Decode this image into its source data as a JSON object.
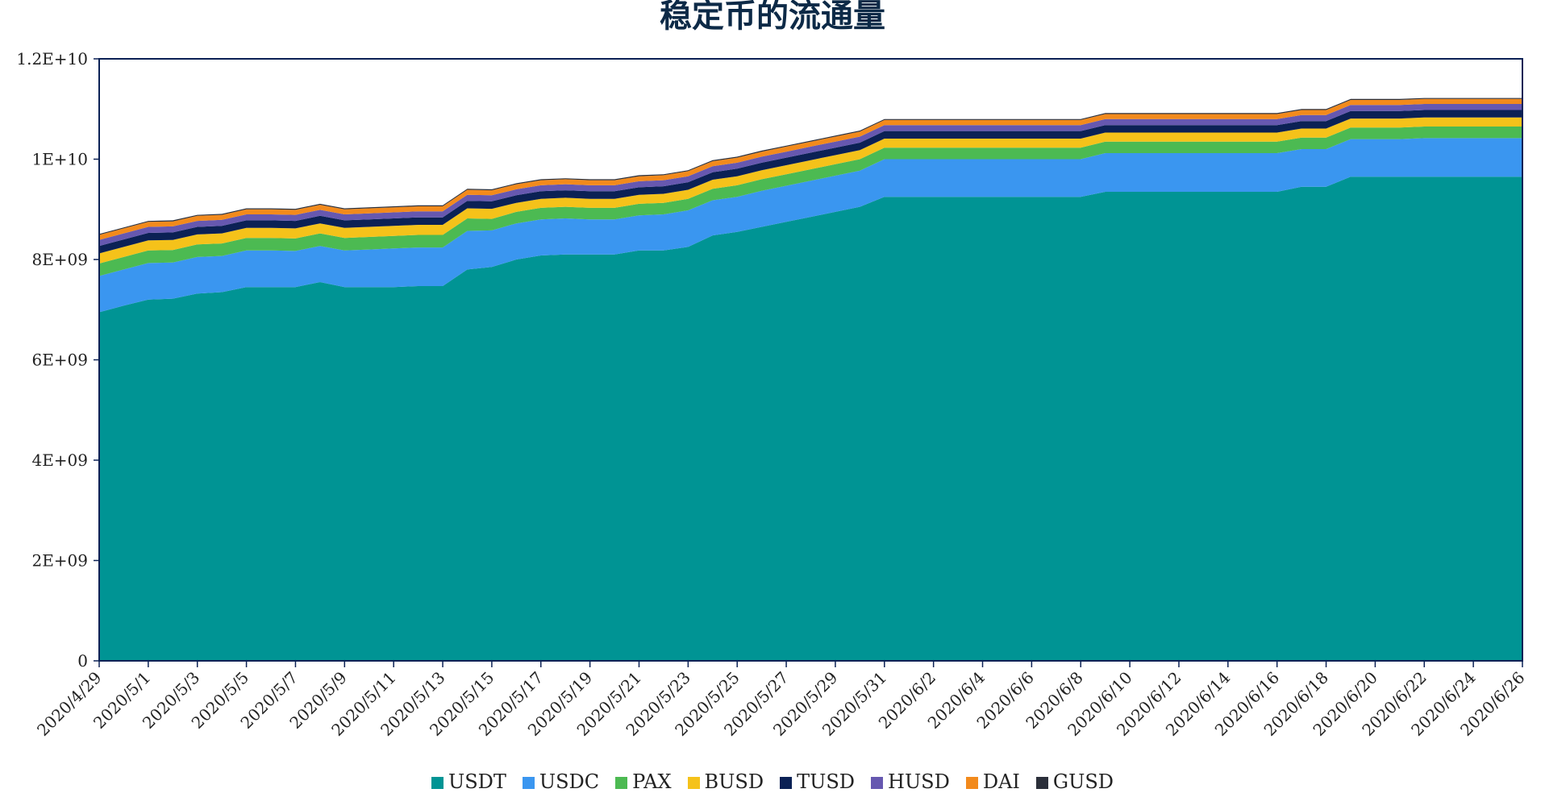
{
  "chart_data": {
    "type": "area",
    "stacked": true,
    "title": "稳定币的流通量",
    "xlabel": "",
    "ylabel": "",
    "ylim": [
      0,
      12000000000
    ],
    "y_ticks": [
      {
        "value": 0,
        "label": "0"
      },
      {
        "value": 2000000000,
        "label": "2E+09"
      },
      {
        "value": 4000000000,
        "label": "4E+09"
      },
      {
        "value": 6000000000,
        "label": "6E+09"
      },
      {
        "value": 8000000000,
        "label": "8E+09"
      },
      {
        "value": 10000000000,
        "label": "1E+10"
      },
      {
        "value": 12000000000,
        "label": "1.2E+10"
      }
    ],
    "x_tick_labels": [
      "2020/4/29",
      "2020/5/1",
      "2020/5/3",
      "2020/5/5",
      "2020/5/7",
      "2020/5/9",
      "2020/5/11",
      "2020/5/13",
      "2020/5/15",
      "2020/5/17",
      "2020/5/19",
      "2020/5/21",
      "2020/5/23",
      "2020/5/25",
      "2020/5/27",
      "2020/5/29",
      "2020/5/31",
      "2020/6/2",
      "2020/6/4",
      "2020/6/6",
      "2020/6/8",
      "2020/6/10",
      "2020/6/12",
      "2020/6/14",
      "2020/6/16",
      "2020/6/18",
      "2020/6/20",
      "2020/6/22",
      "2020/6/24",
      "2020/6/26"
    ],
    "x": [
      "2020/4/29",
      "2020/4/30",
      "2020/5/1",
      "2020/5/2",
      "2020/5/3",
      "2020/5/4",
      "2020/5/5",
      "2020/5/6",
      "2020/5/7",
      "2020/5/8",
      "2020/5/9",
      "2020/5/10",
      "2020/5/11",
      "2020/5/12",
      "2020/5/13",
      "2020/5/14",
      "2020/5/15",
      "2020/5/16",
      "2020/5/17",
      "2020/5/18",
      "2020/5/19",
      "2020/5/20",
      "2020/5/21",
      "2020/5/22",
      "2020/5/23",
      "2020/5/24",
      "2020/5/25",
      "2020/5/26",
      "2020/5/27",
      "2020/5/28",
      "2020/5/29",
      "2020/5/30",
      "2020/5/31",
      "2020/6/1",
      "2020/6/2",
      "2020/6/3",
      "2020/6/4",
      "2020/6/5",
      "2020/6/6",
      "2020/6/7",
      "2020/6/8",
      "2020/6/9",
      "2020/6/10",
      "2020/6/11",
      "2020/6/12",
      "2020/6/13",
      "2020/6/14",
      "2020/6/15",
      "2020/6/16",
      "2020/6/17",
      "2020/6/18",
      "2020/6/19",
      "2020/6/20",
      "2020/6/21",
      "2020/6/22",
      "2020/6/23",
      "2020/6/24",
      "2020/6/25",
      "2020/6/26"
    ],
    "series": [
      {
        "name": "USDT",
        "color": "#009494",
        "values": [
          6950000000.0,
          7080000000.0,
          7200000000.0,
          7220000000.0,
          7320000000.0,
          7350000000.0,
          7450000000.0,
          7450000000.0,
          7450000000.0,
          7550000000.0,
          7450000000.0,
          7450000000.0,
          7450000000.0,
          7470000000.0,
          7470000000.0,
          7800000000.0,
          7850000000.0,
          8000000000.0,
          8080000000.0,
          8100000000.0,
          8100000000.0,
          8100000000.0,
          8180000000.0,
          8180000000.0,
          8250000000.0,
          8480000000.0,
          8550000000.0,
          8650000000.0,
          8750000000.0,
          8850000000.0,
          8950000000.0,
          9050000000.0,
          9250000000.0,
          9250000000.0,
          9250000000.0,
          9250000000.0,
          9250000000.0,
          9250000000.0,
          9250000000.0,
          9250000000.0,
          9250000000.0,
          9350000000.0,
          9350000000.0,
          9350000000.0,
          9350000000.0,
          9350000000.0,
          9350000000.0,
          9350000000.0,
          9350000000.0,
          9450000000.0,
          9450000000.0,
          9650000000.0,
          9650000000.0,
          9650000000.0,
          9650000000.0,
          9650000000.0,
          9650000000.0,
          9650000000.0,
          9650000000.0
        ]
      },
      {
        "name": "USDC",
        "color": "#3a96f0",
        "values": [
          720000000.0,
          720000000.0,
          730000000.0,
          720000000.0,
          730000000.0,
          720000000.0,
          730000000.0,
          730000000.0,
          720000000.0,
          720000000.0,
          730000000.0,
          750000000.0,
          770000000.0,
          770000000.0,
          770000000.0,
          770000000.0,
          730000000.0,
          720000000.0,
          720000000.0,
          720000000.0,
          700000000.0,
          700000000.0,
          700000000.0,
          720000000.0,
          730000000.0,
          700000000.0,
          700000000.0,
          720000000.0,
          720000000.0,
          720000000.0,
          720000000.0,
          720000000.0,
          750000000.0,
          750000000.0,
          750000000.0,
          750000000.0,
          750000000.0,
          750000000.0,
          750000000.0,
          750000000.0,
          750000000.0,
          770000000.0,
          770000000.0,
          770000000.0,
          770000000.0,
          770000000.0,
          770000000.0,
          770000000.0,
          770000000.0,
          750000000.0,
          750000000.0,
          750000000.0,
          750000000.0,
          750000000.0,
          770000000.0,
          770000000.0,
          770000000.0,
          770000000.0,
          770000000.0
        ]
      },
      {
        "name": "PAX",
        "color": "#4cba52",
        "values": [
          250000000.0,
          250000000.0,
          250000000.0,
          250000000.0,
          250000000.0,
          250000000.0,
          250000000.0,
          250000000.0,
          250000000.0,
          250000000.0,
          250000000.0,
          250000000.0,
          250000000.0,
          250000000.0,
          250000000.0,
          250000000.0,
          230000000.0,
          230000000.0,
          230000000.0,
          230000000.0,
          230000000.0,
          230000000.0,
          230000000.0,
          230000000.0,
          230000000.0,
          230000000.0,
          230000000.0,
          230000000.0,
          230000000.0,
          230000000.0,
          230000000.0,
          230000000.0,
          230000000.0,
          230000000.0,
          230000000.0,
          230000000.0,
          230000000.0,
          230000000.0,
          230000000.0,
          230000000.0,
          230000000.0,
          230000000.0,
          230000000.0,
          230000000.0,
          230000000.0,
          230000000.0,
          230000000.0,
          230000000.0,
          230000000.0,
          230000000.0,
          230000000.0,
          230000000.0,
          230000000.0,
          230000000.0,
          230000000.0,
          230000000.0,
          230000000.0,
          230000000.0,
          230000000.0
        ]
      },
      {
        "name": "BUSD",
        "color": "#f5c21a",
        "values": [
          200000000.0,
          200000000.0,
          200000000.0,
          200000000.0,
          200000000.0,
          200000000.0,
          200000000.0,
          200000000.0,
          200000000.0,
          200000000.0,
          200000000.0,
          200000000.0,
          200000000.0,
          200000000.0,
          200000000.0,
          200000000.0,
          200000000.0,
          180000000.0,
          180000000.0,
          180000000.0,
          180000000.0,
          180000000.0,
          180000000.0,
          180000000.0,
          180000000.0,
          180000000.0,
          180000000.0,
          180000000.0,
          180000000.0,
          180000000.0,
          180000000.0,
          180000000.0,
          180000000.0,
          180000000.0,
          180000000.0,
          180000000.0,
          180000000.0,
          180000000.0,
          180000000.0,
          180000000.0,
          180000000.0,
          180000000.0,
          180000000.0,
          180000000.0,
          180000000.0,
          180000000.0,
          180000000.0,
          180000000.0,
          180000000.0,
          180000000.0,
          180000000.0,
          180000000.0,
          180000000.0,
          180000000.0,
          180000000.0,
          180000000.0,
          180000000.0,
          180000000.0,
          180000000.0
        ]
      },
      {
        "name": "TUSD",
        "color": "#0b2155",
        "values": [
          150000000.0,
          150000000.0,
          150000000.0,
          150000000.0,
          150000000.0,
          150000000.0,
          150000000.0,
          150000000.0,
          150000000.0,
          150000000.0,
          150000000.0,
          150000000.0,
          150000000.0,
          150000000.0,
          150000000.0,
          150000000.0,
          150000000.0,
          150000000.0,
          150000000.0,
          150000000.0,
          150000000.0,
          150000000.0,
          150000000.0,
          150000000.0,
          150000000.0,
          150000000.0,
          150000000.0,
          150000000.0,
          150000000.0,
          150000000.0,
          150000000.0,
          150000000.0,
          150000000.0,
          150000000.0,
          150000000.0,
          150000000.0,
          150000000.0,
          150000000.0,
          150000000.0,
          150000000.0,
          150000000.0,
          150000000.0,
          150000000.0,
          150000000.0,
          150000000.0,
          150000000.0,
          150000000.0,
          150000000.0,
          150000000.0,
          150000000.0,
          150000000.0,
          150000000.0,
          150000000.0,
          150000000.0,
          150000000.0,
          150000000.0,
          150000000.0,
          150000000.0,
          150000000.0
        ]
      },
      {
        "name": "HUSD",
        "color": "#6658b0",
        "values": [
          120000000.0,
          120000000.0,
          120000000.0,
          120000000.0,
          120000000.0,
          120000000.0,
          120000000.0,
          120000000.0,
          120000000.0,
          120000000.0,
          120000000.0,
          120000000.0,
          120000000.0,
          120000000.0,
          120000000.0,
          120000000.0,
          120000000.0,
          120000000.0,
          120000000.0,
          120000000.0,
          120000000.0,
          120000000.0,
          120000000.0,
          120000000.0,
          120000000.0,
          120000000.0,
          120000000.0,
          120000000.0,
          120000000.0,
          120000000.0,
          120000000.0,
          120000000.0,
          120000000.0,
          120000000.0,
          120000000.0,
          120000000.0,
          120000000.0,
          120000000.0,
          120000000.0,
          120000000.0,
          120000000.0,
          120000000.0,
          120000000.0,
          120000000.0,
          120000000.0,
          120000000.0,
          120000000.0,
          120000000.0,
          120000000.0,
          120000000.0,
          120000000.0,
          120000000.0,
          120000000.0,
          120000000.0,
          120000000.0,
          120000000.0,
          120000000.0,
          120000000.0,
          120000000.0
        ]
      },
      {
        "name": "DAI",
        "color": "#f28a1c",
        "values": [
          100000000.0,
          100000000.0,
          100000000.0,
          100000000.0,
          100000000.0,
          100000000.0,
          100000000.0,
          100000000.0,
          100000000.0,
          100000000.0,
          100000000.0,
          100000000.0,
          100000000.0,
          100000000.0,
          100000000.0,
          100000000.0,
          100000000.0,
          100000000.0,
          100000000.0,
          100000000.0,
          100000000.0,
          100000000.0,
          100000000.0,
          100000000.0,
          100000000.0,
          100000000.0,
          100000000.0,
          100000000.0,
          100000000.0,
          100000000.0,
          100000000.0,
          100000000.0,
          100000000.0,
          100000000.0,
          100000000.0,
          100000000.0,
          100000000.0,
          100000000.0,
          100000000.0,
          100000000.0,
          100000000.0,
          100000000.0,
          100000000.0,
          100000000.0,
          100000000.0,
          100000000.0,
          100000000.0,
          100000000.0,
          100000000.0,
          100000000.0,
          100000000.0,
          100000000.0,
          100000000.0,
          100000000.0,
          100000000.0,
          100000000.0,
          100000000.0,
          100000000.0,
          100000000.0
        ]
      },
      {
        "name": "GUSD",
        "color": "#2b2f3a",
        "values": [
          20000000.0,
          20000000.0,
          20000000.0,
          20000000.0,
          20000000.0,
          20000000.0,
          20000000.0,
          20000000.0,
          20000000.0,
          20000000.0,
          20000000.0,
          20000000.0,
          20000000.0,
          20000000.0,
          20000000.0,
          20000000.0,
          20000000.0,
          20000000.0,
          20000000.0,
          20000000.0,
          20000000.0,
          20000000.0,
          20000000.0,
          20000000.0,
          20000000.0,
          20000000.0,
          20000000.0,
          20000000.0,
          20000000.0,
          20000000.0,
          20000000.0,
          20000000.0,
          20000000.0,
          20000000.0,
          20000000.0,
          20000000.0,
          20000000.0,
          20000000.0,
          20000000.0,
          20000000.0,
          20000000.0,
          20000000.0,
          20000000.0,
          20000000.0,
          20000000.0,
          20000000.0,
          20000000.0,
          20000000.0,
          20000000.0,
          20000000.0,
          20000000.0,
          20000000.0,
          20000000.0,
          20000000.0,
          20000000.0,
          20000000.0,
          20000000.0,
          20000000.0,
          20000000.0
        ]
      }
    ],
    "grid": false,
    "legend_position": "bottom"
  }
}
